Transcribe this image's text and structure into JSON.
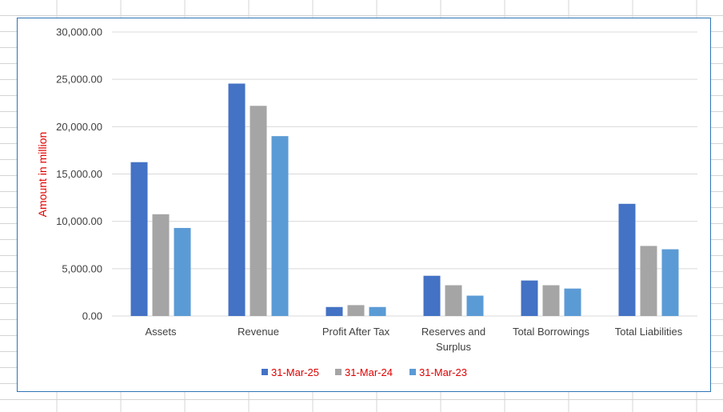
{
  "chart_data": {
    "type": "bar",
    "title": "",
    "xlabel": "",
    "ylabel": "Amount in million",
    "ylim": [
      0,
      30000
    ],
    "yticks": [
      0,
      5000,
      10000,
      15000,
      20000,
      25000,
      30000
    ],
    "ytick_labels": [
      "0.00",
      "5,000.00",
      "10,000.00",
      "15,000.00",
      "20,000.00",
      "25,000.00",
      "30,000.00"
    ],
    "categories": [
      [
        "Assets"
      ],
      [
        "Revenue"
      ],
      [
        "Profit After Tax"
      ],
      [
        "Reserves and",
        "Surplus"
      ],
      [
        "Total Borrowings"
      ],
      [
        "Total Liabilities"
      ]
    ],
    "series": [
      {
        "name": "31-Mar-25",
        "color": "#4472c4",
        "values": [
          16250,
          24550,
          950,
          4250,
          3750,
          11850
        ]
      },
      {
        "name": "31-Mar-24",
        "color": "#a5a5a5",
        "values": [
          10750,
          22200,
          1150,
          3250,
          3250,
          7400
        ]
      },
      {
        "name": "31-Mar-23",
        "color": "#5b9bd5",
        "values": [
          9300,
          19000,
          950,
          2150,
          2900,
          7050
        ]
      }
    ],
    "grid": true,
    "legend_position": "bottom"
  },
  "colors": {
    "frame_border": "#2e75b6",
    "gridline": "#d9d9d9",
    "sheet_grid": "#d4d4d4",
    "axis_title": "#e00000",
    "legend_text": "#e00000"
  }
}
